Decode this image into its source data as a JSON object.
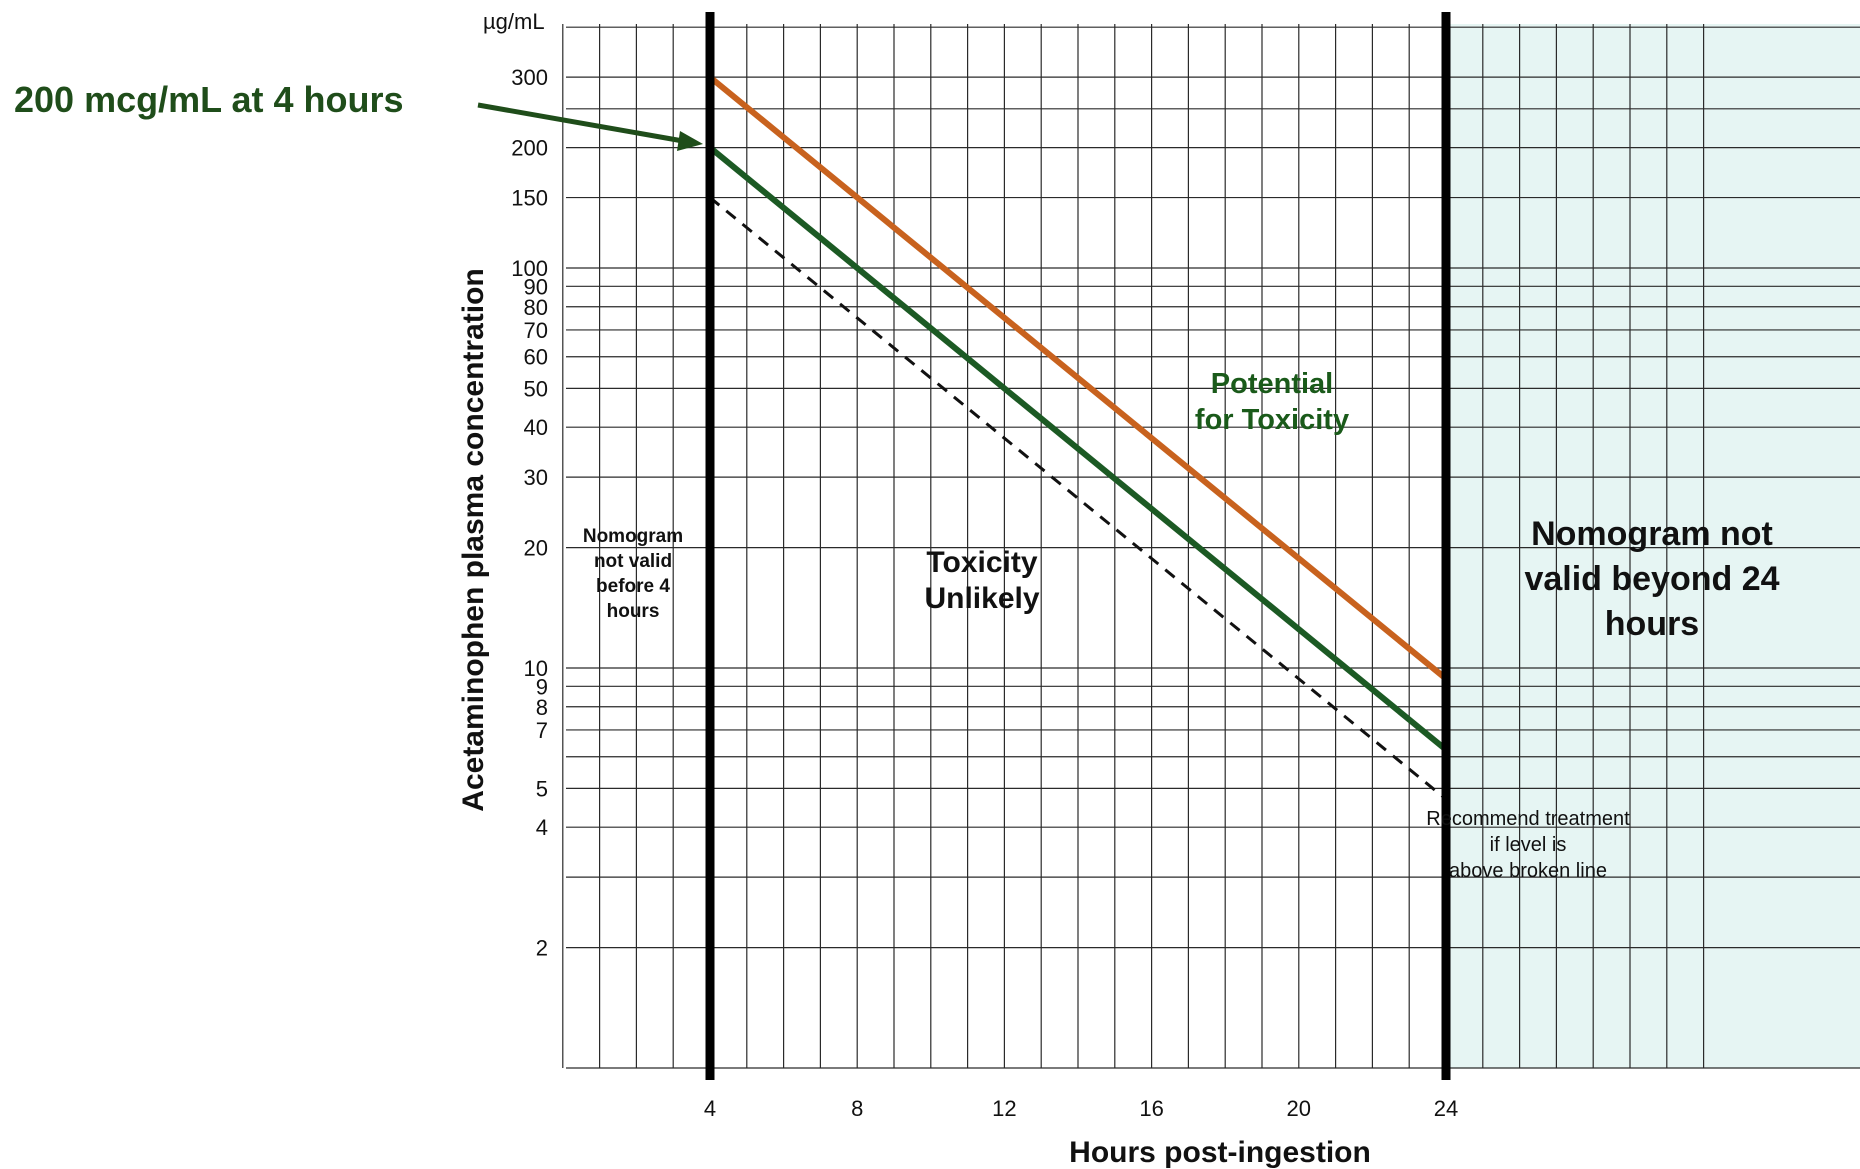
{
  "chart_data": {
    "type": "line",
    "title": "",
    "xlabel": "Hours post-ingestion",
    "ylabel": "Acetaminophen plasma concentration",
    "yunit": "µg/mL",
    "yscale": "log",
    "xlim": [
      0,
      31
    ],
    "ylim": [
      1,
      400
    ],
    "grid": true,
    "x_ticks": [
      4,
      8,
      12,
      16,
      20,
      24
    ],
    "x_tick_labels": [
      "4",
      "8",
      "12",
      "16",
      "20",
      "24"
    ],
    "y_ticks": [
      300,
      200,
      150,
      100,
      90,
      80,
      70,
      60,
      50,
      40,
      30,
      20,
      10,
      9,
      8,
      7,
      5,
      4,
      2
    ],
    "y_tick_labels": [
      "300",
      "200",
      "150",
      "100",
      "90",
      "80",
      "70",
      "60",
      "50",
      "40",
      "30",
      "20",
      "10",
      "9",
      "8",
      "7",
      "5",
      "4",
      "2"
    ],
    "validity_bounds": [
      4,
      24
    ],
    "series": [
      {
        "key": "upper",
        "color": "#c8621e",
        "style": "solid",
        "x": [
          4,
          24
        ],
        "y": [
          300,
          9.4
        ]
      },
      {
        "key": "standard",
        "color": "#1c5a24",
        "style": "solid",
        "x": [
          4,
          24
        ],
        "y": [
          200,
          6.25
        ]
      },
      {
        "key": "treatment",
        "color": "#111111",
        "style": "dashed",
        "x": [
          4,
          24
        ],
        "y": [
          150,
          4.7
        ]
      }
    ],
    "annotations": {
      "before": [
        "Nomogram",
        "not valid",
        "before 4",
        "hours"
      ],
      "unlikely": [
        "Toxicity",
        "Unlikely"
      ],
      "potential": [
        "Potential",
        "for Toxicity"
      ],
      "beyond": [
        "Nomogram not",
        "valid beyond 24",
        "hours"
      ],
      "recommend": [
        "Recommend treatment",
        "if level is",
        "above broken line"
      ],
      "callout": "200 mcg/mL at 4 hours"
    }
  },
  "colors": {
    "grid": "#2a2a2a",
    "shade": "#e6f5f3",
    "callout": "#1f4d1a"
  }
}
